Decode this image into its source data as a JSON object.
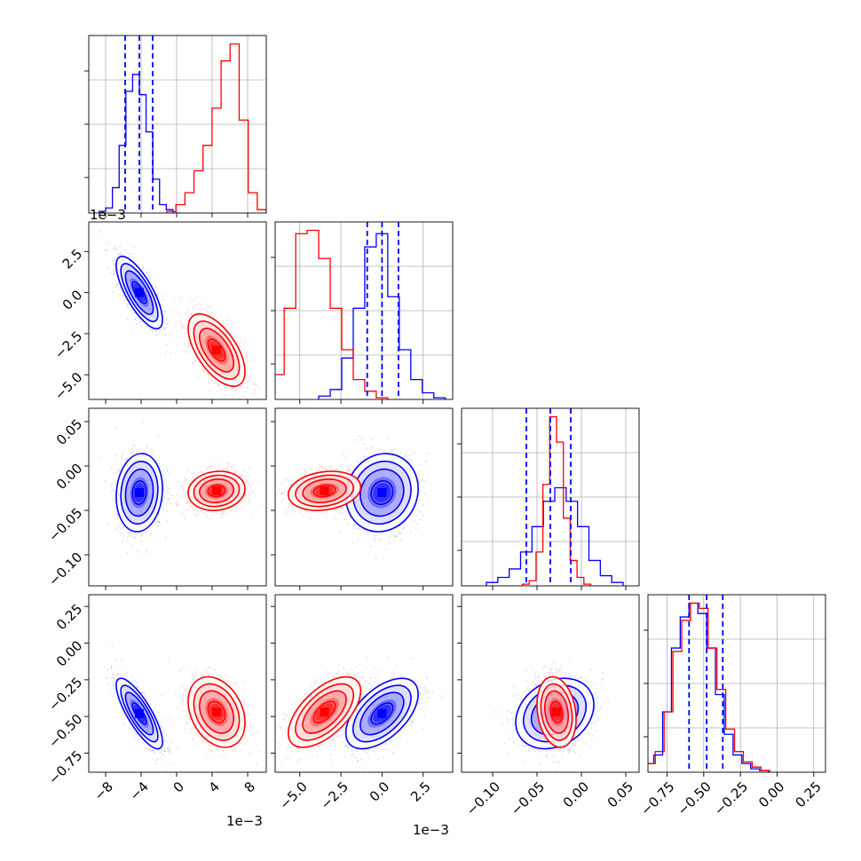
{
  "chart_data": {
    "type": "corner",
    "n_params": 4,
    "series": [
      {
        "color": "#0000ff",
        "mean": [
          -0.0042,
          0.0,
          -0.03,
          -0.48
        ],
        "std": [
          0.0013,
          0.0011,
          0.022,
          0.12
        ],
        "quantiles": [
          [
            -0.0058,
            -0.0042,
            -0.0027
          ],
          [
            -0.0009,
            0.0,
            0.001
          ],
          [
            -0.062,
            -0.035,
            -0.012
          ],
          [
            -0.6,
            -0.48,
            -0.37
          ]
        ],
        "cov2d": [
          {
            "i": 1,
            "j": 0,
            "corr": -0.75
          },
          {
            "i": 2,
            "j": 0,
            "corr": 0.1
          },
          {
            "i": 2,
            "j": 1,
            "corr": 0.1
          },
          {
            "i": 3,
            "j": 0,
            "corr": -0.8
          },
          {
            "i": 3,
            "j": 1,
            "corr": 0.55
          },
          {
            "i": 3,
            "j": 2,
            "corr": 0.25
          }
        ],
        "hist_shapes": [
          [
            0.01,
            0.03,
            0.15,
            0.4,
            0.72,
            0.82,
            0.7,
            0.48,
            0.2,
            0.05,
            0.02,
            0.0
          ],
          [
            0.02,
            0.06,
            0.25,
            0.55,
            0.92,
            1.0,
            0.62,
            0.3,
            0.12,
            0.04,
            0.01
          ],
          [
            0.02,
            0.05,
            0.1,
            0.2,
            0.35,
            0.5,
            0.58,
            0.5,
            0.35,
            0.15,
            0.06,
            0.02
          ],
          [
            0.05,
            0.1,
            0.35,
            0.72,
            0.9,
            0.98,
            0.92,
            0.72,
            0.45,
            0.22,
            0.1,
            0.05,
            0.02,
            0.01
          ]
        ]
      },
      {
        "color": "#ff0000",
        "mean": [
          0.0045,
          -0.0035,
          -0.028,
          -0.47
        ],
        "std": [
          0.0016,
          0.0011,
          0.011,
          0.12
        ],
        "cov2d": [
          {
            "i": 1,
            "j": 0,
            "corr": -0.6
          },
          {
            "i": 2,
            "j": 0,
            "corr": 0.1
          },
          {
            "i": 2,
            "j": 1,
            "corr": 0.2
          },
          {
            "i": 3,
            "j": 0,
            "corr": -0.3
          },
          {
            "i": 3,
            "j": 1,
            "corr": 0.6
          },
          {
            "i": 3,
            "j": 2,
            "corr": -0.2
          }
        ],
        "hist_shapes": [
          [
            0.01,
            0.05,
            0.12,
            0.25,
            0.4,
            0.62,
            0.9,
            1.0,
            0.55,
            0.12,
            0.02
          ],
          [
            0.03,
            0.15,
            0.55,
            1.0,
            1.02,
            0.85,
            0.55,
            0.3,
            0.12,
            0.05,
            0.01
          ],
          [
            0.01,
            0.03,
            0.2,
            0.6,
            1.0,
            0.85,
            0.4,
            0.15,
            0.05,
            0.01
          ],
          [
            0.05,
            0.12,
            0.35,
            0.7,
            0.88,
            0.98,
            0.95,
            0.72,
            0.48,
            0.25,
            0.12,
            0.06,
            0.03,
            0.01
          ]
        ]
      }
    ],
    "ranges": [
      [
        -0.0099,
        0.0101
      ],
      [
        -0.0065,
        0.0043
      ],
      [
        -0.135,
        0.065
      ],
      [
        -0.88,
        0.33
      ]
    ],
    "x_tick_labels": [
      [
        "−8",
        "−4",
        "0",
        "4",
        "8"
      ],
      [
        "−5.0",
        "−2.5",
        "0.0",
        "2.5"
      ],
      [
        "−0.10",
        "−0.05",
        "0.00",
        "0.05"
      ],
      [
        "−0.75",
        "−0.50",
        "−0.25",
        "0.00",
        "0.25"
      ]
    ],
    "x_tick_values": [
      [
        -0.008,
        -0.004,
        0.0,
        0.004,
        0.008
      ],
      [
        -0.005,
        -0.0025,
        0.0,
        0.0025
      ],
      [
        -0.1,
        -0.05,
        0.0,
        0.05
      ],
      [
        -0.75,
        -0.5,
        -0.25,
        0.0,
        0.25
      ]
    ],
    "y_tick_labels": [
      null,
      [
        "2.5",
        "0.0",
        "−2.5",
        "−5.0"
      ],
      [
        "0.05",
        "0.00",
        "−0.05",
        "−0.10"
      ],
      [
        "0.25",
        "0.00",
        "−0.25",
        "−0.50",
        "−0.75"
      ]
    ],
    "y_tick_values": [
      null,
      [
        0.0025,
        0.0,
        -0.0025,
        -0.005
      ],
      [
        0.05,
        0.0,
        -0.05,
        -0.1
      ],
      [
        0.25,
        0.0,
        -0.25,
        -0.5,
        -0.75
      ]
    ],
    "offset_labels": {
      "x0": "1e−3",
      "x1": "1e−3",
      "y1": "1e−3"
    },
    "grid": true
  }
}
